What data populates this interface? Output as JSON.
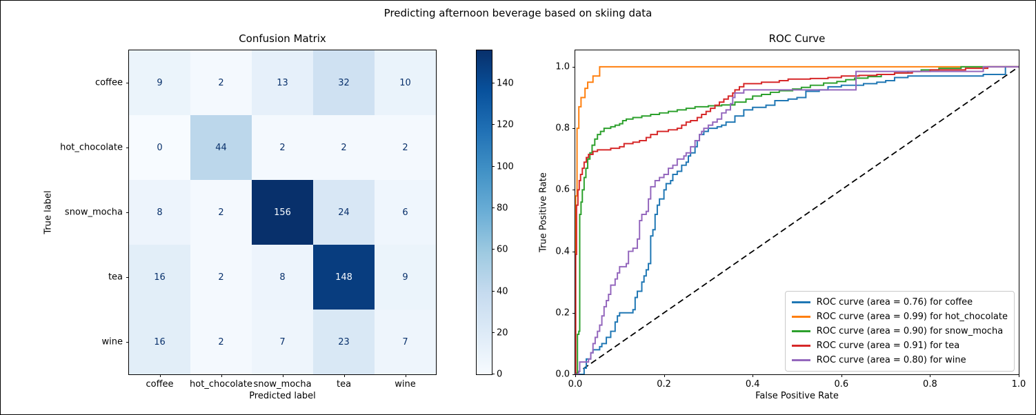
{
  "figure_title": "Predicting afternoon beverage based on skiing data",
  "palette": {
    "coffee": "#1f77b4",
    "hot_chocolate": "#ff7f0e",
    "snow_mocha": "#2ca02c",
    "tea": "#d62728",
    "wine": "#9467bd",
    "diagonal": "#000000",
    "heatmap_min": "#f7fbff",
    "heatmap_max": "#08306b"
  },
  "chart_data": [
    {
      "type": "heatmap",
      "title": "Confusion Matrix",
      "xlabel": "Predicted label",
      "ylabel": "True label",
      "categories": [
        "coffee",
        "hot_chocolate",
        "snow_mocha",
        "tea",
        "wine"
      ],
      "values": [
        [
          9,
          2,
          13,
          32,
          10
        ],
        [
          0,
          44,
          2,
          2,
          2
        ],
        [
          8,
          2,
          156,
          24,
          6
        ],
        [
          16,
          2,
          8,
          148,
          9
        ],
        [
          16,
          2,
          7,
          23,
          7
        ]
      ],
      "vmin": 0,
      "vmax": 156,
      "cell_colors": [
        [
          "#ebf4fb",
          "#f4f9fe",
          "#e6f0fa",
          "#cfe1f2",
          "#eaf3fb"
        ],
        [
          "#f7fbff",
          "#bcd7eb",
          "#f4f9fe",
          "#f4f9fe",
          "#f4f9fe"
        ],
        [
          "#edf4fc",
          "#f4f9fe",
          "#08306b",
          "#d8e7f5",
          "#eff6fd"
        ],
        [
          "#e2eef8",
          "#f4f9fe",
          "#edf4fc",
          "#083d7f",
          "#ebf4fb"
        ],
        [
          "#e2eef8",
          "#f4f9fe",
          "#eef5fc",
          "#d9e8f5",
          "#eef5fc"
        ]
      ],
      "cell_text_colors": [
        [
          "#08306b",
          "#08306b",
          "#08306b",
          "#08306b",
          "#08306b"
        ],
        [
          "#08306b",
          "#08306b",
          "#08306b",
          "#08306b",
          "#08306b"
        ],
        [
          "#08306b",
          "#08306b",
          "#f7fbff",
          "#08306b",
          "#08306b"
        ],
        [
          "#08306b",
          "#08306b",
          "#08306b",
          "#f7fbff",
          "#08306b"
        ],
        [
          "#08306b",
          "#08306b",
          "#08306b",
          "#08306b",
          "#08306b"
        ]
      ],
      "colorbar_ticks": [
        "0",
        "20",
        "40",
        "60",
        "80",
        "100",
        "120",
        "140"
      ],
      "colorbar_gradient": [
        "#f7fbff",
        "#deebf7",
        "#c6dbef",
        "#9ecae1",
        "#6baed6",
        "#4292c6",
        "#2171b5",
        "#08519c",
        "#08306b"
      ]
    },
    {
      "type": "line",
      "title": "ROC Curve",
      "xlabel": "False Positive Rate",
      "ylabel": "True Positive Rate",
      "x_ticks": [
        "0.0",
        "0.2",
        "0.4",
        "0.6",
        "0.8",
        "1.0"
      ],
      "y_ticks": [
        "0.0",
        "0.2",
        "0.4",
        "0.6",
        "0.8",
        "1.0"
      ],
      "xlim": [
        0.0,
        1.0
      ],
      "ylim": [
        0.0,
        1.05
      ],
      "legend_position": "lower right",
      "diagonal": {
        "style": "dashed",
        "color": "#000000",
        "from": [
          0,
          0
        ],
        "to": [
          1,
          1
        ]
      },
      "series": [
        {
          "name": "coffee",
          "auc": "0.76",
          "color": "#1f77b4",
          "label": "ROC curve (area = 0.76) for coffee",
          "points": [
            [
              0,
              0
            ],
            [
              0.02,
              0.02
            ],
            [
              0.025,
              0.05
            ],
            [
              0.035,
              0.07
            ],
            [
              0.04,
              0.08
            ],
            [
              0.055,
              0.09
            ],
            [
              0.06,
              0.1
            ],
            [
              0.07,
              0.12
            ],
            [
              0.08,
              0.14
            ],
            [
              0.09,
              0.17
            ],
            [
              0.095,
              0.19
            ],
            [
              0.1,
              0.2
            ],
            [
              0.13,
              0.21
            ],
            [
              0.135,
              0.25
            ],
            [
              0.14,
              0.27
            ],
            [
              0.15,
              0.3
            ],
            [
              0.155,
              0.32
            ],
            [
              0.16,
              0.34
            ],
            [
              0.165,
              0.36
            ],
            [
              0.17,
              0.45
            ],
            [
              0.175,
              0.47
            ],
            [
              0.18,
              0.52
            ],
            [
              0.185,
              0.55
            ],
            [
              0.19,
              0.57
            ],
            [
              0.2,
              0.6
            ],
            [
              0.205,
              0.62
            ],
            [
              0.215,
              0.63
            ],
            [
              0.22,
              0.65
            ],
            [
              0.23,
              0.66
            ],
            [
              0.24,
              0.68
            ],
            [
              0.25,
              0.69
            ],
            [
              0.255,
              0.71
            ],
            [
              0.26,
              0.72
            ],
            [
              0.27,
              0.74
            ],
            [
              0.275,
              0.76
            ],
            [
              0.28,
              0.78
            ],
            [
              0.29,
              0.79
            ],
            [
              0.3,
              0.8
            ],
            [
              0.32,
              0.805
            ],
            [
              0.33,
              0.81
            ],
            [
              0.34,
              0.82
            ],
            [
              0.36,
              0.84
            ],
            [
              0.38,
              0.86
            ],
            [
              0.4,
              0.868
            ],
            [
              0.43,
              0.875
            ],
            [
              0.45,
              0.89
            ],
            [
              0.48,
              0.895
            ],
            [
              0.5,
              0.9
            ],
            [
              0.52,
              0.92
            ],
            [
              0.55,
              0.925
            ],
            [
              0.57,
              0.935
            ],
            [
              0.6,
              0.94
            ],
            [
              0.65,
              0.945
            ],
            [
              0.68,
              0.95
            ],
            [
              0.7,
              0.955
            ],
            [
              0.72,
              0.965
            ],
            [
              0.75,
              0.97
            ],
            [
              0.92,
              0.975
            ],
            [
              0.97,
              1
            ],
            [
              1,
              1
            ]
          ]
        },
        {
          "name": "hot_chocolate",
          "auc": "0.99",
          "color": "#ff7f0e",
          "label": "ROC curve (area = 0.99) for hot_chocolate",
          "points": [
            [
              0,
              0
            ],
            [
              0.001,
              0.58
            ],
            [
              0.004,
              0.8
            ],
            [
              0.008,
              0.87
            ],
            [
              0.013,
              0.9
            ],
            [
              0.022,
              0.93
            ],
            [
              0.028,
              0.95
            ],
            [
              0.04,
              0.97
            ],
            [
              0.055,
              1
            ],
            [
              1,
              1
            ]
          ]
        },
        {
          "name": "snow_mocha",
          "auc": "0.90",
          "color": "#2ca02c",
          "label": "ROC curve (area = 0.90) for snow_mocha",
          "points": [
            [
              0,
              0
            ],
            [
              0.005,
              0.13
            ],
            [
              0.008,
              0.14
            ],
            [
              0.01,
              0.52
            ],
            [
              0.013,
              0.56
            ],
            [
              0.016,
              0.6
            ],
            [
              0.02,
              0.64
            ],
            [
              0.024,
              0.67
            ],
            [
              0.028,
              0.7
            ],
            [
              0.033,
              0.72
            ],
            [
              0.038,
              0.745
            ],
            [
              0.044,
              0.765
            ],
            [
              0.05,
              0.78
            ],
            [
              0.057,
              0.79
            ],
            [
              0.065,
              0.8
            ],
            [
              0.08,
              0.805
            ],
            [
              0.09,
              0.81
            ],
            [
              0.1,
              0.815
            ],
            [
              0.107,
              0.825
            ],
            [
              0.115,
              0.83
            ],
            [
              0.13,
              0.835
            ],
            [
              0.15,
              0.84
            ],
            [
              0.17,
              0.845
            ],
            [
              0.19,
              0.85
            ],
            [
              0.21,
              0.855
            ],
            [
              0.23,
              0.86
            ],
            [
              0.25,
              0.865
            ],
            [
              0.27,
              0.87
            ],
            [
              0.3,
              0.873
            ],
            [
              0.33,
              0.876
            ],
            [
              0.36,
              0.885
            ],
            [
              0.385,
              0.895
            ],
            [
              0.4,
              0.905
            ],
            [
              0.42,
              0.91
            ],
            [
              0.44,
              0.917
            ],
            [
              0.46,
              0.922
            ],
            [
              0.49,
              0.928
            ],
            [
              0.51,
              0.933
            ],
            [
              0.53,
              0.94
            ],
            [
              0.56,
              0.947
            ],
            [
              0.59,
              0.952
            ],
            [
              0.61,
              0.958
            ],
            [
              0.63,
              0.963
            ],
            [
              0.66,
              0.968
            ],
            [
              0.69,
              0.975
            ],
            [
              0.72,
              0.98
            ],
            [
              0.75,
              0.985
            ],
            [
              0.78,
              0.99
            ],
            [
              0.82,
              0.995
            ],
            [
              0.87,
              1
            ],
            [
              1,
              1
            ]
          ]
        },
        {
          "name": "tea",
          "auc": "0.91",
          "color": "#d62728",
          "label": "ROC curve (area = 0.91) for tea",
          "points": [
            [
              0,
              0
            ],
            [
              0.001,
              0.39
            ],
            [
              0.003,
              0.55
            ],
            [
              0.006,
              0.6
            ],
            [
              0.009,
              0.63
            ],
            [
              0.012,
              0.65
            ],
            [
              0.016,
              0.67
            ],
            [
              0.02,
              0.69
            ],
            [
              0.025,
              0.705
            ],
            [
              0.03,
              0.715
            ],
            [
              0.04,
              0.725
            ],
            [
              0.05,
              0.73
            ],
            [
              0.08,
              0.735
            ],
            [
              0.1,
              0.74
            ],
            [
              0.11,
              0.75
            ],
            [
              0.13,
              0.755
            ],
            [
              0.145,
              0.76
            ],
            [
              0.16,
              0.77
            ],
            [
              0.17,
              0.78
            ],
            [
              0.185,
              0.79
            ],
            [
              0.21,
              0.795
            ],
            [
              0.23,
              0.8
            ],
            [
              0.24,
              0.81
            ],
            [
              0.25,
              0.82
            ],
            [
              0.26,
              0.825
            ],
            [
              0.275,
              0.835
            ],
            [
              0.285,
              0.845
            ],
            [
              0.295,
              0.855
            ],
            [
              0.305,
              0.865
            ],
            [
              0.315,
              0.875
            ],
            [
              0.325,
              0.885
            ],
            [
              0.335,
              0.895
            ],
            [
              0.345,
              0.905
            ],
            [
              0.355,
              0.915
            ],
            [
              0.36,
              0.925
            ],
            [
              0.37,
              0.935
            ],
            [
              0.38,
              0.945
            ],
            [
              0.42,
              0.95
            ],
            [
              0.46,
              0.955
            ],
            [
              0.48,
              0.96
            ],
            [
              0.53,
              0.962
            ],
            [
              0.57,
              0.965
            ],
            [
              0.6,
              0.97
            ],
            [
              0.64,
              0.972
            ],
            [
              0.68,
              0.975
            ],
            [
              0.72,
              0.98
            ],
            [
              0.76,
              0.985
            ],
            [
              0.8,
              0.99
            ],
            [
              0.88,
              0.995
            ],
            [
              0.93,
              1
            ],
            [
              1,
              1
            ]
          ]
        },
        {
          "name": "wine",
          "auc": "0.80",
          "color": "#9467bd",
          "label": "ROC curve (area = 0.80) for wine",
          "points": [
            [
              0,
              0
            ],
            [
              0.008,
              0.01
            ],
            [
              0.01,
              0.04
            ],
            [
              0.03,
              0.05
            ],
            [
              0.035,
              0.07
            ],
            [
              0.04,
              0.1
            ],
            [
              0.045,
              0.12
            ],
            [
              0.05,
              0.14
            ],
            [
              0.055,
              0.16
            ],
            [
              0.06,
              0.19
            ],
            [
              0.065,
              0.22
            ],
            [
              0.07,
              0.24
            ],
            [
              0.075,
              0.26
            ],
            [
              0.08,
              0.29
            ],
            [
              0.09,
              0.31
            ],
            [
              0.095,
              0.33
            ],
            [
              0.1,
              0.35
            ],
            [
              0.115,
              0.36
            ],
            [
              0.12,
              0.4
            ],
            [
              0.13,
              0.41
            ],
            [
              0.14,
              0.44
            ],
            [
              0.145,
              0.5
            ],
            [
              0.15,
              0.52
            ],
            [
              0.16,
              0.53
            ],
            [
              0.165,
              0.57
            ],
            [
              0.17,
              0.61
            ],
            [
              0.18,
              0.63
            ],
            [
              0.19,
              0.64
            ],
            [
              0.2,
              0.65
            ],
            [
              0.21,
              0.67
            ],
            [
              0.22,
              0.68
            ],
            [
              0.23,
              0.7
            ],
            [
              0.245,
              0.71
            ],
            [
              0.25,
              0.72
            ],
            [
              0.26,
              0.74
            ],
            [
              0.27,
              0.76
            ],
            [
              0.28,
              0.78
            ],
            [
              0.285,
              0.79
            ],
            [
              0.29,
              0.8
            ],
            [
              0.3,
              0.81
            ],
            [
              0.31,
              0.82
            ],
            [
              0.32,
              0.83
            ],
            [
              0.33,
              0.85
            ],
            [
              0.34,
              0.86
            ],
            [
              0.35,
              0.88
            ],
            [
              0.355,
              0.9
            ],
            [
              0.36,
              0.915
            ],
            [
              0.38,
              0.925
            ],
            [
              0.633,
              0.985
            ],
            [
              0.92,
              1
            ],
            [
              1,
              1
            ]
          ]
        }
      ]
    }
  ]
}
